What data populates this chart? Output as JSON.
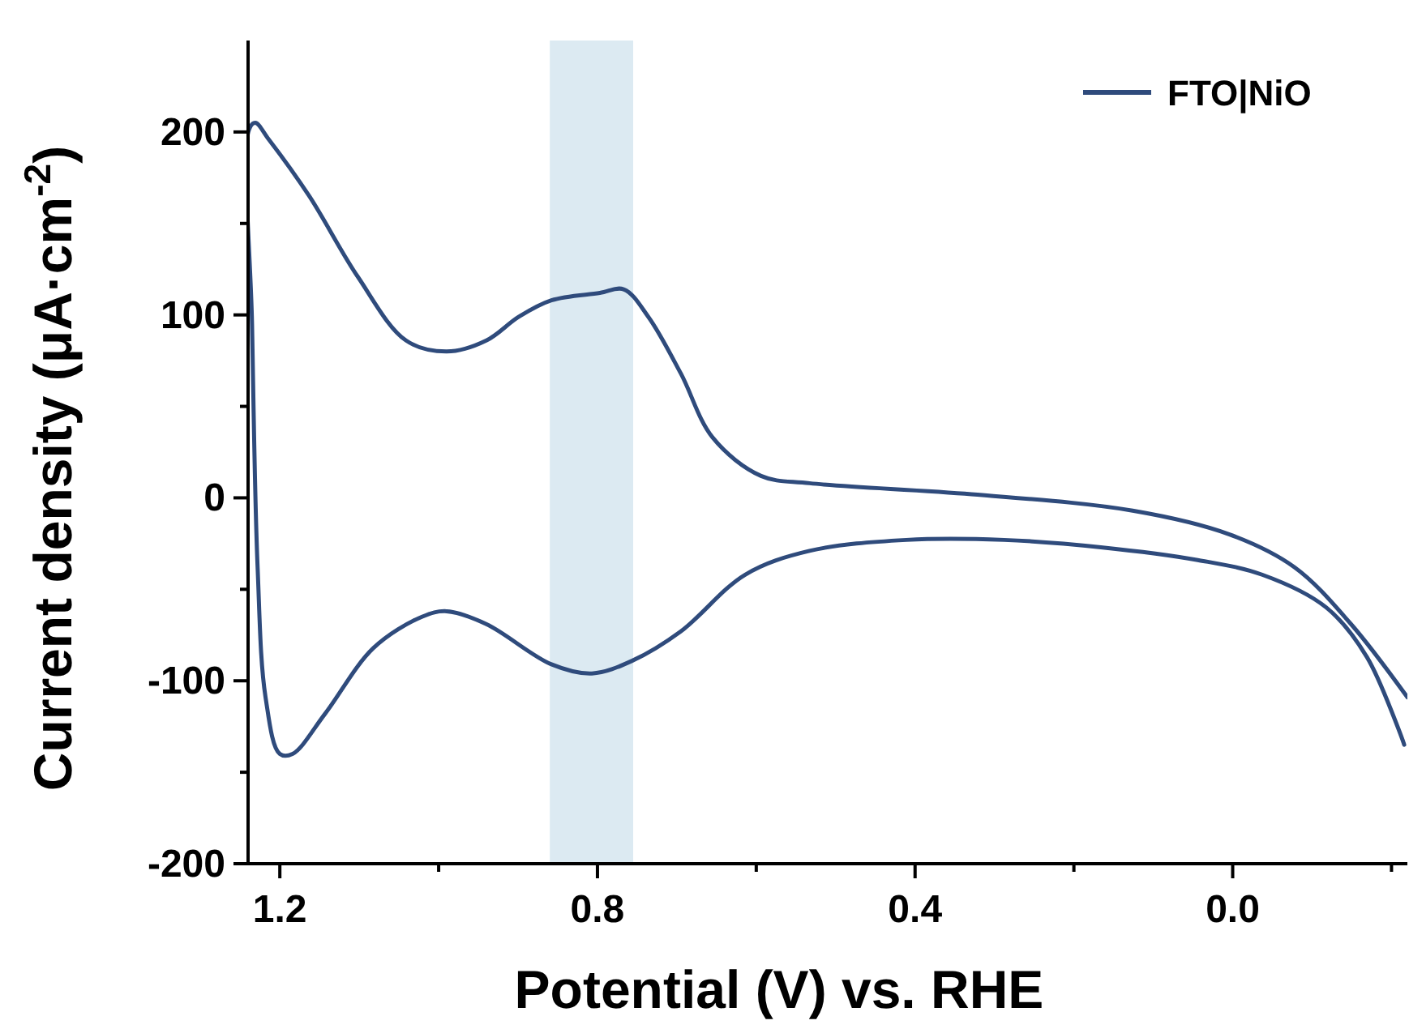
{
  "chart_data": {
    "type": "line",
    "xlabel": "Potential (V) vs. RHE",
    "ylabel": "Current density (μA·cm$^{-2}$)",
    "xlim": [
      1.24,
      -0.22
    ],
    "ylim": [
      -200,
      250
    ],
    "xticks": [
      1.2,
      {
        "value": 1.0,
        "label": null
      },
      0.8,
      {
        "value": 0.6,
        "label": null
      },
      0.4,
      {
        "value": 0.2,
        "label": null
      },
      {
        "value": 0,
        "label": "0.0"
      },
      {
        "value": -0.2,
        "label": null
      }
    ],
    "yticks": [
      -200,
      {
        "value": -150,
        "label": null
      },
      -100,
      {
        "value": -50,
        "label": null
      },
      0,
      {
        "value": 50,
        "label": null
      },
      100,
      {
        "value": 150,
        "label": null
      },
      200
    ],
    "grid": false,
    "legend": "top right",
    "line_style": "solid",
    "marker": "none",
    "bands": [
      {
        "axis": "x",
        "from": 0.86,
        "to": 0.755,
        "color": "#dceaf2"
      }
    ],
    "series": [
      {
        "name": "FTO|NiO",
        "color": "#2f4b7c",
        "x": [
          -0.22,
          -0.149,
          -0.078,
          0.004,
          0.126,
          0.329,
          0.533,
          0.594,
          0.655,
          0.695,
          0.736,
          0.767,
          0.797,
          0.858,
          0.899,
          0.94,
          0.99,
          1.041,
          1.102,
          1.163,
          1.214,
          1.231,
          1.239,
          1.235,
          1.228,
          1.218,
          1.2,
          1.184,
          1.143,
          1.082,
          1.021,
          0.99,
          0.94,
          0.858,
          0.807,
          0.756,
          0.695,
          0.614,
          0.533,
          0.411,
          0.288,
          0.166,
          0.044,
          -0.037,
          -0.118,
          -0.169,
          -0.216
        ],
        "values": [
          -109,
          -69,
          -38,
          -20,
          -7,
          2,
          8,
          12,
          33,
          68,
          99,
          114,
          112,
          108,
          99,
          86,
          80,
          86,
          121,
          165,
          196,
          205,
          201,
          95,
          -38,
          -109,
          -140,
          -140,
          -118,
          -82,
          -65,
          -62,
          -69,
          -91,
          -96,
          -89,
          -73,
          -42,
          -29,
          -23,
          -23,
          -27,
          -34,
          -42,
          -60,
          -87,
          -135
        ]
      }
    ]
  }
}
